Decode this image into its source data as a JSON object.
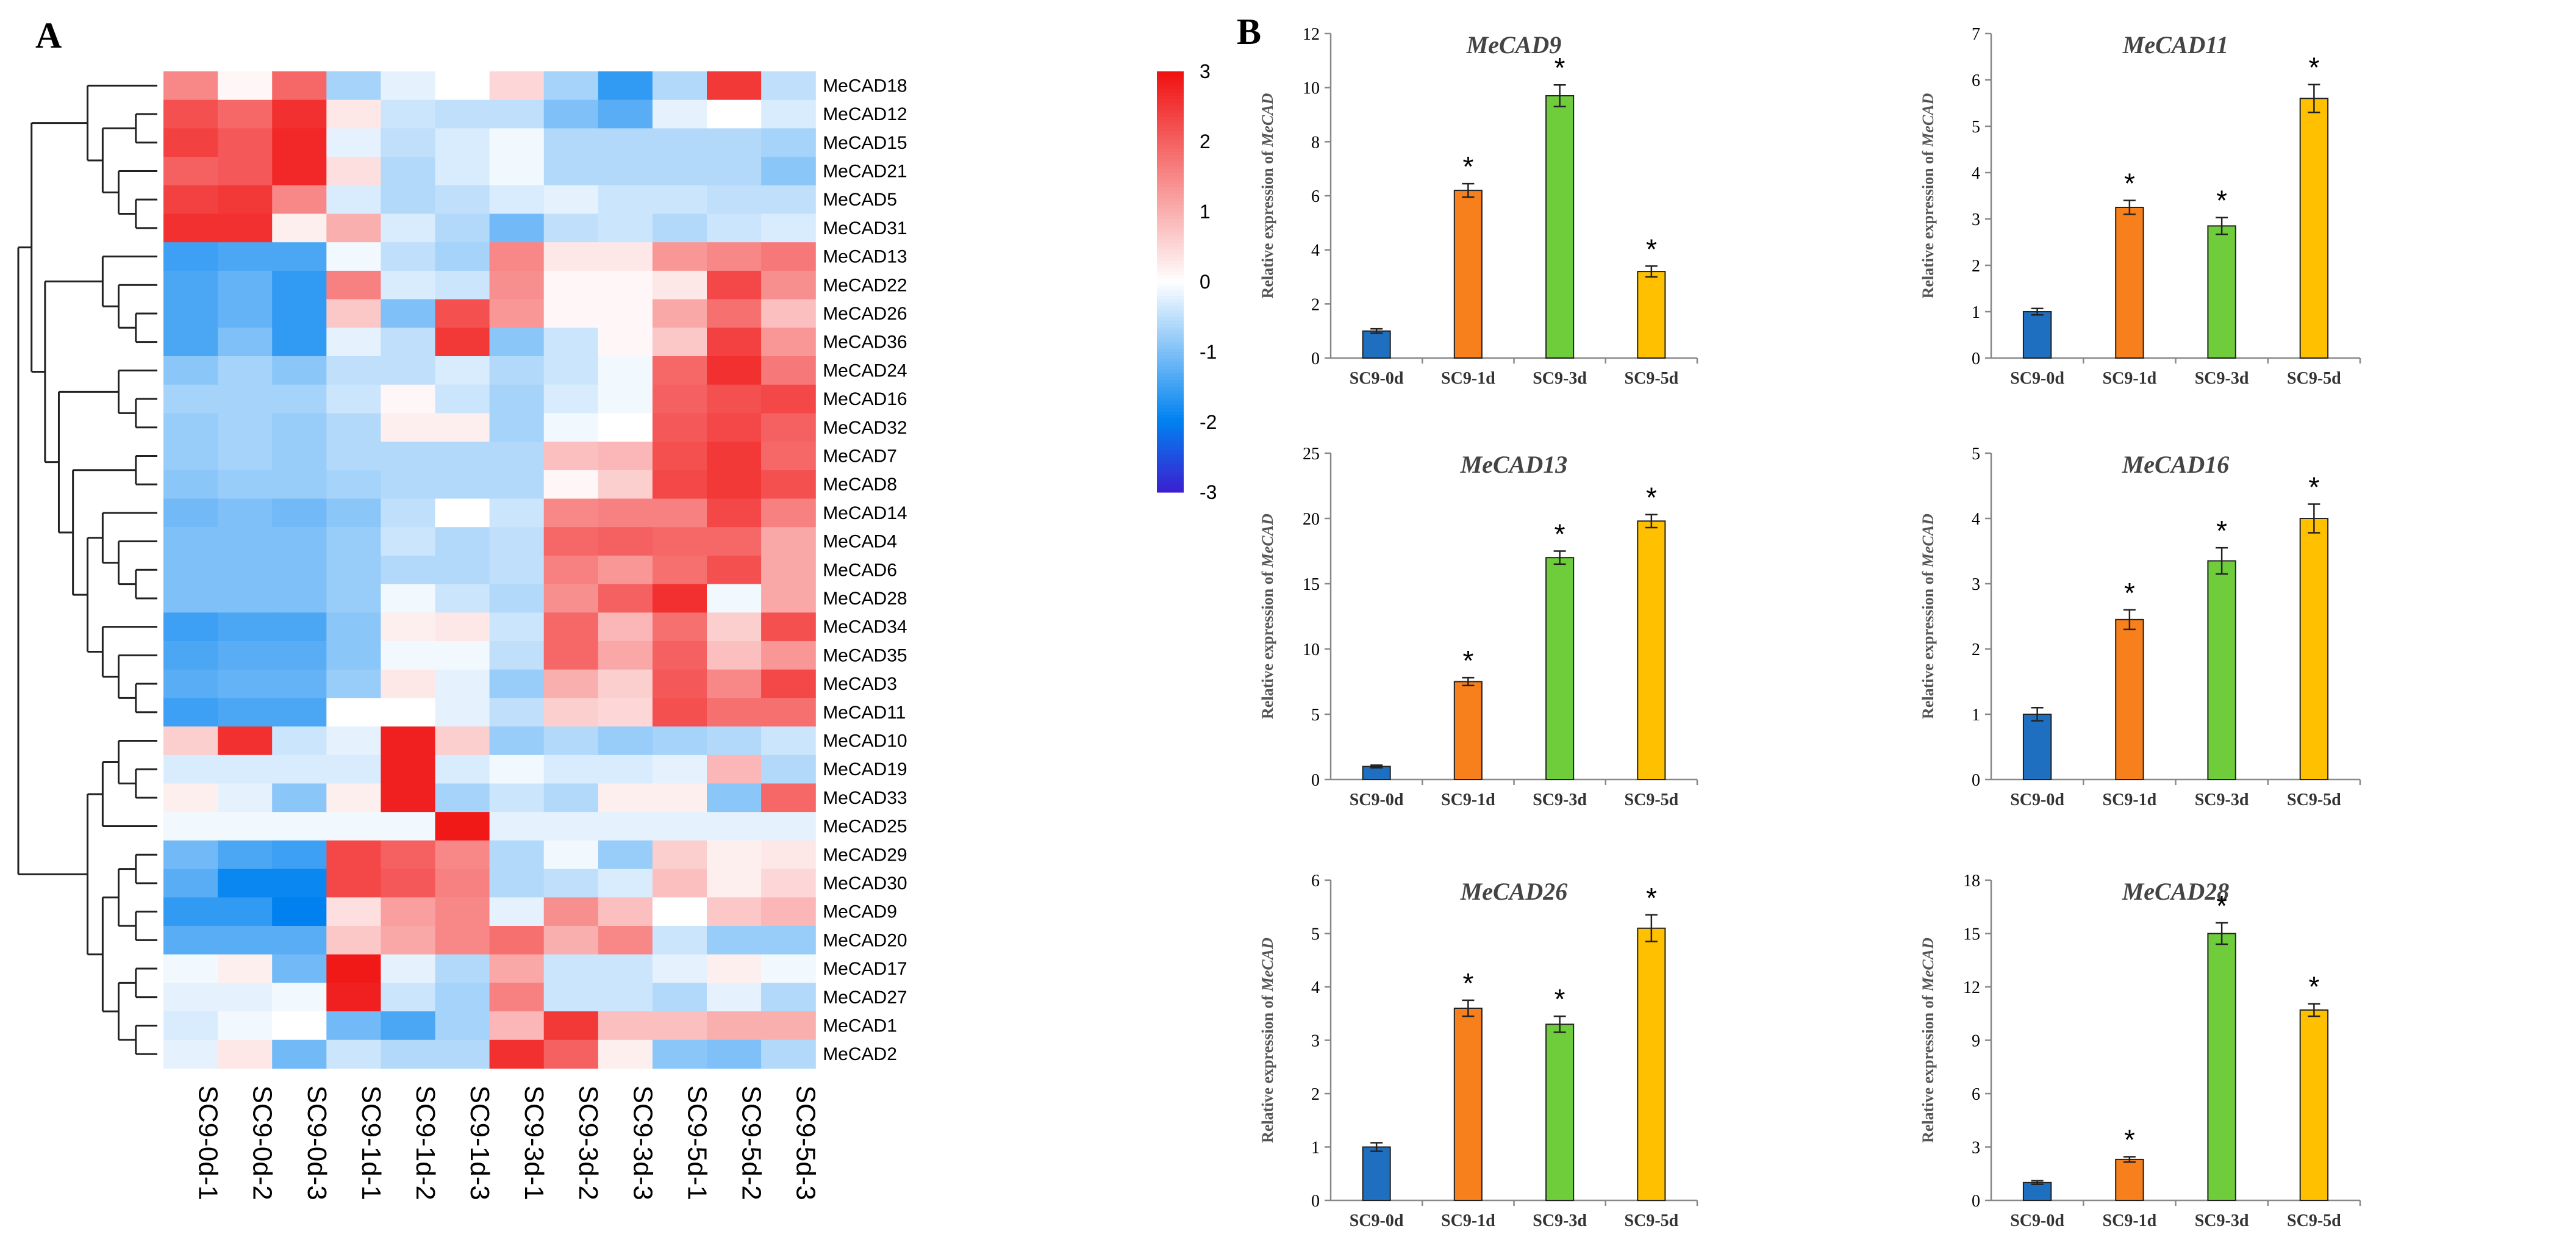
{
  "panel_a_label": "A",
  "panel_b_label": "B",
  "colors": {
    "heat_low": "#3b1fd1",
    "heat_mid": "#ffffff",
    "heat_high": "#f01010",
    "bar_series": [
      "#1f6fc0",
      "#f77f1c",
      "#6fcd3c",
      "#ffc000"
    ],
    "bar_border": "#222222"
  },
  "chart_data": [
    {
      "type": "heatmap",
      "columns": [
        "SC9-0d-1",
        "SC9-0d-2",
        "SC9-0d-3",
        "SC9-1d-1",
        "SC9-1d-2",
        "SC9-1d-3",
        "SC9-3d-1",
        "SC9-3d-2",
        "SC9-3d-3",
        "SC9-5d-1",
        "SC9-5d-2",
        "SC9-5d-3"
      ],
      "rows": [
        "MeCAD18",
        "MeCAD12",
        "MeCAD15",
        "MeCAD21",
        "MeCAD5",
        "MeCAD31",
        "MeCAD13",
        "MeCAD22",
        "MeCAD26",
        "MeCAD36",
        "MeCAD24",
        "MeCAD16",
        "MeCAD32",
        "MeCAD7",
        "MeCAD8",
        "MeCAD14",
        "MeCAD4",
        "MeCAD6",
        "MeCAD28",
        "MeCAD34",
        "MeCAD35",
        "MeCAD3",
        "MeCAD11",
        "MeCAD10",
        "MeCAD19",
        "MeCAD33",
        "MeCAD25",
        "MeCAD29",
        "MeCAD30",
        "MeCAD9",
        "MeCAD20",
        "MeCAD17",
        "MeCAD27",
        "MeCAD1",
        "MeCAD2"
      ],
      "values": [
        [
          1.5,
          0.1,
          1.9,
          -0.7,
          -0.2,
          0.0,
          0.5,
          -0.7,
          -1.6,
          -0.6,
          2.5,
          -0.5
        ],
        [
          2.2,
          1.9,
          2.6,
          0.3,
          -0.4,
          -0.5,
          -0.5,
          -1.0,
          -1.3,
          -0.2,
          0.0,
          -0.3
        ],
        [
          2.4,
          2.1,
          2.7,
          -0.2,
          -0.5,
          -0.3,
          -0.1,
          -0.6,
          -0.6,
          -0.6,
          -0.6,
          -0.7
        ],
        [
          2.0,
          2.1,
          2.7,
          0.4,
          -0.6,
          -0.3,
          -0.1,
          -0.6,
          -0.6,
          -0.6,
          -0.6,
          -0.9
        ],
        [
          2.4,
          2.5,
          1.5,
          -0.3,
          -0.6,
          -0.5,
          -0.3,
          -0.2,
          -0.4,
          -0.4,
          -0.5,
          -0.5
        ],
        [
          2.6,
          2.6,
          0.2,
          1.0,
          -0.3,
          -0.6,
          -1.1,
          -0.5,
          -0.4,
          -0.6,
          -0.4,
          -0.3
        ],
        [
          -1.5,
          -1.4,
          -1.4,
          -0.1,
          -0.5,
          -0.7,
          1.5,
          0.3,
          0.3,
          1.3,
          1.5,
          1.7
        ],
        [
          -1.4,
          -1.2,
          -1.6,
          1.6,
          -0.3,
          -0.4,
          1.4,
          0.1,
          0.1,
          0.3,
          2.3,
          1.4
        ],
        [
          -1.4,
          -1.2,
          -1.6,
          0.7,
          -1.0,
          2.2,
          1.3,
          0.1,
          0.1,
          1.1,
          1.8,
          0.8
        ],
        [
          -1.4,
          -1.0,
          -1.6,
          -0.2,
          -0.5,
          2.5,
          -0.9,
          -0.4,
          0.1,
          0.7,
          2.4,
          1.3
        ],
        [
          -0.9,
          -0.7,
          -0.9,
          -0.5,
          -0.5,
          -0.3,
          -0.6,
          -0.4,
          -0.1,
          1.9,
          2.6,
          1.7
        ],
        [
          -0.7,
          -0.7,
          -0.7,
          -0.4,
          0.1,
          -0.4,
          -0.7,
          -0.3,
          -0.1,
          2.0,
          2.2,
          2.3
        ],
        [
          -0.8,
          -0.7,
          -0.8,
          -0.6,
          0.2,
          0.2,
          -0.7,
          -0.1,
          0.0,
          2.1,
          2.3,
          2.0
        ],
        [
          -0.8,
          -0.7,
          -0.8,
          -0.6,
          -0.6,
          -0.6,
          -0.6,
          0.8,
          0.9,
          2.2,
          2.5,
          1.9
        ],
        [
          -0.9,
          -0.8,
          -0.8,
          -0.7,
          -0.6,
          -0.6,
          -0.6,
          0.1,
          0.6,
          2.3,
          2.5,
          2.2
        ],
        [
          -1.1,
          -1.0,
          -1.1,
          -0.9,
          -0.5,
          0.0,
          -0.4,
          1.5,
          1.6,
          1.6,
          2.3,
          1.6
        ],
        [
          -1.0,
          -1.0,
          -1.0,
          -0.8,
          -0.4,
          -0.6,
          -0.5,
          1.9,
          2.0,
          1.9,
          1.9,
          1.1
        ],
        [
          -1.0,
          -1.0,
          -1.0,
          -0.8,
          -0.6,
          -0.6,
          -0.5,
          1.6,
          1.3,
          1.8,
          2.2,
          1.1
        ],
        [
          -1.0,
          -1.0,
          -1.0,
          -0.8,
          -0.1,
          -0.4,
          -0.6,
          1.4,
          2.0,
          2.6,
          -0.1,
          1.1
        ],
        [
          -1.5,
          -1.4,
          -1.4,
          -0.9,
          0.2,
          0.3,
          -0.4,
          1.9,
          0.9,
          1.8,
          0.6,
          2.2
        ],
        [
          -1.4,
          -1.3,
          -1.3,
          -0.9,
          -0.1,
          -0.1,
          -0.5,
          1.9,
          1.1,
          2.0,
          0.8,
          1.3
        ],
        [
          -1.3,
          -1.2,
          -1.2,
          -0.8,
          0.3,
          -0.2,
          -0.8,
          1.0,
          0.6,
          2.1,
          1.5,
          2.3
        ],
        [
          -1.5,
          -1.4,
          -1.4,
          0.0,
          0.0,
          -0.2,
          -0.5,
          0.6,
          0.5,
          2.2,
          1.8,
          1.8
        ],
        [
          0.6,
          2.6,
          -0.4,
          -0.2,
          2.8,
          0.6,
          -0.8,
          -0.6,
          -0.8,
          -0.7,
          -0.6,
          -0.4
        ],
        [
          -0.3,
          -0.3,
          -0.3,
          -0.3,
          2.8,
          -0.3,
          -0.1,
          -0.3,
          -0.3,
          -0.2,
          0.9,
          -0.6
        ],
        [
          0.2,
          -0.2,
          -0.9,
          0.2,
          2.8,
          -0.7,
          -0.4,
          -0.6,
          0.2,
          0.2,
          -0.9,
          1.9
        ],
        [
          -0.1,
          -0.1,
          -0.1,
          -0.1,
          -0.1,
          2.9,
          -0.2,
          -0.2,
          -0.2,
          -0.2,
          -0.2,
          -0.2
        ],
        [
          -1.1,
          -1.4,
          -1.5,
          2.3,
          2.0,
          1.5,
          -0.6,
          -0.1,
          -0.8,
          0.6,
          0.2,
          0.3
        ],
        [
          -1.3,
          -1.9,
          -1.9,
          2.3,
          2.1,
          1.6,
          -0.6,
          -0.5,
          -0.3,
          0.8,
          0.2,
          0.5
        ],
        [
          -1.6,
          -1.6,
          -2.0,
          0.4,
          1.2,
          1.5,
          -0.2,
          1.4,
          0.8,
          0.0,
          0.7,
          0.9
        ],
        [
          -1.3,
          -1.3,
          -1.3,
          0.7,
          1.1,
          1.5,
          1.8,
          1.0,
          1.5,
          -0.4,
          -0.8,
          -0.8
        ],
        [
          -0.1,
          0.2,
          -1.1,
          2.9,
          -0.2,
          -0.6,
          1.1,
          -0.4,
          -0.4,
          -0.2,
          0.2,
          -0.1
        ],
        [
          -0.2,
          -0.2,
          -0.1,
          2.8,
          -0.4,
          -0.7,
          1.6,
          -0.4,
          -0.4,
          -0.6,
          -0.2,
          -0.6
        ],
        [
          -0.3,
          -0.1,
          0.0,
          -1.1,
          -1.4,
          -0.7,
          0.9,
          2.5,
          0.8,
          0.8,
          1.0,
          1.0
        ],
        [
          -0.2,
          0.3,
          -1.1,
          -0.4,
          -0.6,
          -0.6,
          2.6,
          2.0,
          0.2,
          -0.9,
          -1.0,
          -0.6
        ]
      ],
      "dendrogram": "(((MeCAD18,((MeCAD12,MeCAD15),(MeCAD21,(MeCAD5,MeCAD31)))),((MeCAD13,(MeCAD22,(MeCAD26,MeCAD36))),((MeCAD24,(MeCAD16,MeCAD32)),((MeCAD7,MeCAD8),((MeCAD14,(MeCAD4,(MeCAD6,MeCAD28))),(MeCAD34,(MeCAD35,(MeCAD3,MeCAD11)))))))),(((MeCAD10,(MeCAD19,MeCAD33)),MeCAD25),(((MeCAD29,MeCAD30),(MeCAD9,MeCAD20)),((MeCAD17,MeCAD27),(MeCAD1,MeCAD2)))))",
      "colorbar": {
        "min": -3,
        "max": 3,
        "ticks": [
          3,
          2,
          1,
          0,
          -1,
          -2,
          -3
        ]
      }
    },
    {
      "type": "bar",
      "title": "MeCAD9",
      "ylabel_prefix": "Relative expression of ",
      "ylabel_gene": "MeCAD",
      "categories": [
        "SC9-0d",
        "SC9-1d",
        "SC9-3d",
        "SC9-5d"
      ],
      "values": [
        1.0,
        6.2,
        9.7,
        3.2
      ],
      "errors": [
        0.08,
        0.25,
        0.4,
        0.2
      ],
      "significance": [
        "",
        "*",
        "*",
        "*"
      ],
      "ylim": [
        0,
        12
      ],
      "yticks": [
        0,
        2,
        4,
        6,
        8,
        10,
        12
      ]
    },
    {
      "type": "bar",
      "title": "MeCAD11",
      "ylabel_prefix": "Relative expression of ",
      "ylabel_gene": "MeCAD",
      "categories": [
        "SC9-0d",
        "SC9-1d",
        "SC9-3d",
        "SC9-5d"
      ],
      "values": [
        1.0,
        3.25,
        2.85,
        5.6
      ],
      "errors": [
        0.07,
        0.15,
        0.18,
        0.3
      ],
      "significance": [
        "",
        "*",
        "*",
        "*"
      ],
      "ylim": [
        0,
        7
      ],
      "yticks": [
        0,
        1,
        2,
        3,
        4,
        5,
        6,
        7
      ]
    },
    {
      "type": "bar",
      "title": "MeCAD13",
      "ylabel_prefix": "Relative expression of ",
      "ylabel_gene": "MeCAD",
      "categories": [
        "SC9-0d",
        "SC9-1d",
        "SC9-3d",
        "SC9-5d"
      ],
      "values": [
        1.0,
        7.5,
        17.0,
        19.8
      ],
      "errors": [
        0.1,
        0.3,
        0.5,
        0.5
      ],
      "significance": [
        "",
        "*",
        "*",
        "*"
      ],
      "ylim": [
        0,
        25
      ],
      "yticks": [
        0,
        5,
        10,
        15,
        20,
        25
      ]
    },
    {
      "type": "bar",
      "title": "MeCAD16",
      "ylabel_prefix": "Relative expression of ",
      "ylabel_gene": "MeCAD",
      "categories": [
        "SC9-0d",
        "SC9-1d",
        "SC9-3d",
        "SC9-5d"
      ],
      "values": [
        1.0,
        2.45,
        3.35,
        4.0
      ],
      "errors": [
        0.1,
        0.15,
        0.2,
        0.22
      ],
      "significance": [
        "",
        "*",
        "*",
        "*"
      ],
      "ylim": [
        0,
        5
      ],
      "yticks": [
        0,
        1,
        2,
        3,
        4,
        5
      ]
    },
    {
      "type": "bar",
      "title": "MeCAD26",
      "ylabel_prefix": "Relative expression of ",
      "ylabel_gene": "MeCAD",
      "categories": [
        "SC9-0d",
        "SC9-1d",
        "SC9-3d",
        "SC9-5d"
      ],
      "values": [
        1.0,
        3.6,
        3.3,
        5.1
      ],
      "errors": [
        0.08,
        0.15,
        0.15,
        0.25
      ],
      "significance": [
        "",
        "*",
        "*",
        "*"
      ],
      "ylim": [
        0,
        6
      ],
      "yticks": [
        0,
        1,
        2,
        3,
        4,
        5,
        6
      ]
    },
    {
      "type": "bar",
      "title": "MeCAD28",
      "ylabel_prefix": "Relative expression of ",
      "ylabel_gene": "MeCAD",
      "categories": [
        "SC9-0d",
        "SC9-1d",
        "SC9-3d",
        "SC9-5d"
      ],
      "values": [
        1.0,
        2.3,
        15.0,
        10.7
      ],
      "errors": [
        0.1,
        0.15,
        0.6,
        0.35
      ],
      "significance": [
        "",
        "*",
        "*",
        "*"
      ],
      "ylim": [
        0,
        18
      ],
      "yticks": [
        0,
        3,
        6,
        9,
        12,
        15,
        18
      ]
    }
  ]
}
